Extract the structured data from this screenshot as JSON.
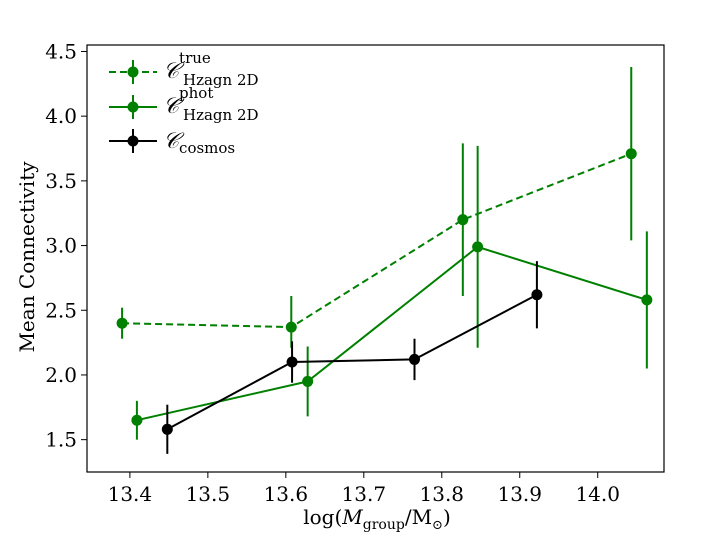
{
  "chart_data": {
    "type": "line",
    "title": "",
    "xlabel": "log(M_group/M_sun)",
    "xlabel_parts": {
      "prefix": "log(",
      "var": "M",
      "sub": "group",
      "mid": "/M",
      "sun": "⊙",
      "suffix": ")"
    },
    "ylabel": "Mean Connectivity",
    "xlim": [
      13.345,
      14.085
    ],
    "ylim": [
      1.25,
      4.55
    ],
    "xticks": [
      "13.4",
      "13.5",
      "13.6",
      "13.7",
      "13.8",
      "13.9",
      "14.0"
    ],
    "yticks": [
      "1.5",
      "2.0",
      "2.5",
      "3.0",
      "3.5",
      "4.0",
      "4.5"
    ],
    "legend_position": "top-left",
    "series": [
      {
        "name": "C true Hzagn 2D",
        "legend": {
          "script": "𝒞",
          "sup": "true",
          "sub": "Hzagn 2D"
        },
        "color": "#008000",
        "linestyle": "dashed",
        "points": [
          {
            "x": 13.39,
            "y": 2.4,
            "yerr_low": 0.12,
            "yerr_high": 0.12
          },
          {
            "x": 13.607,
            "y": 2.37,
            "yerr_low": 0.16,
            "yerr_high": 0.24
          },
          {
            "x": 13.827,
            "y": 3.2,
            "yerr_low": 0.59,
            "yerr_high": 0.59
          },
          {
            "x": 14.043,
            "y": 3.71,
            "yerr_low": 0.67,
            "yerr_high": 0.67
          }
        ]
      },
      {
        "name": "C phot Hzagn 2D",
        "legend": {
          "script": "𝒞",
          "sup": "phot",
          "sub": "Hzagn 2D"
        },
        "color": "#008000",
        "linestyle": "solid",
        "points": [
          {
            "x": 13.409,
            "y": 1.65,
            "yerr_low": 0.15,
            "yerr_high": 0.15
          },
          {
            "x": 13.628,
            "y": 1.95,
            "yerr_low": 0.27,
            "yerr_high": 0.27
          },
          {
            "x": 13.846,
            "y": 2.99,
            "yerr_low": 0.78,
            "yerr_high": 0.78
          },
          {
            "x": 14.063,
            "y": 2.58,
            "yerr_low": 0.53,
            "yerr_high": 0.53
          }
        ]
      },
      {
        "name": "C cosmos",
        "legend": {
          "script": "𝒞",
          "sup": "",
          "sub": "cosmos"
        },
        "color": "#000000",
        "linestyle": "solid",
        "points": [
          {
            "x": 13.448,
            "y": 1.58,
            "yerr_low": 0.19,
            "yerr_high": 0.19
          },
          {
            "x": 13.608,
            "y": 2.1,
            "yerr_low": 0.16,
            "yerr_high": 0.16
          },
          {
            "x": 13.765,
            "y": 2.12,
            "yerr_low": 0.16,
            "yerr_high": 0.16
          },
          {
            "x": 13.922,
            "y": 2.62,
            "yerr_low": 0.26,
            "yerr_high": 0.26
          }
        ]
      }
    ]
  }
}
